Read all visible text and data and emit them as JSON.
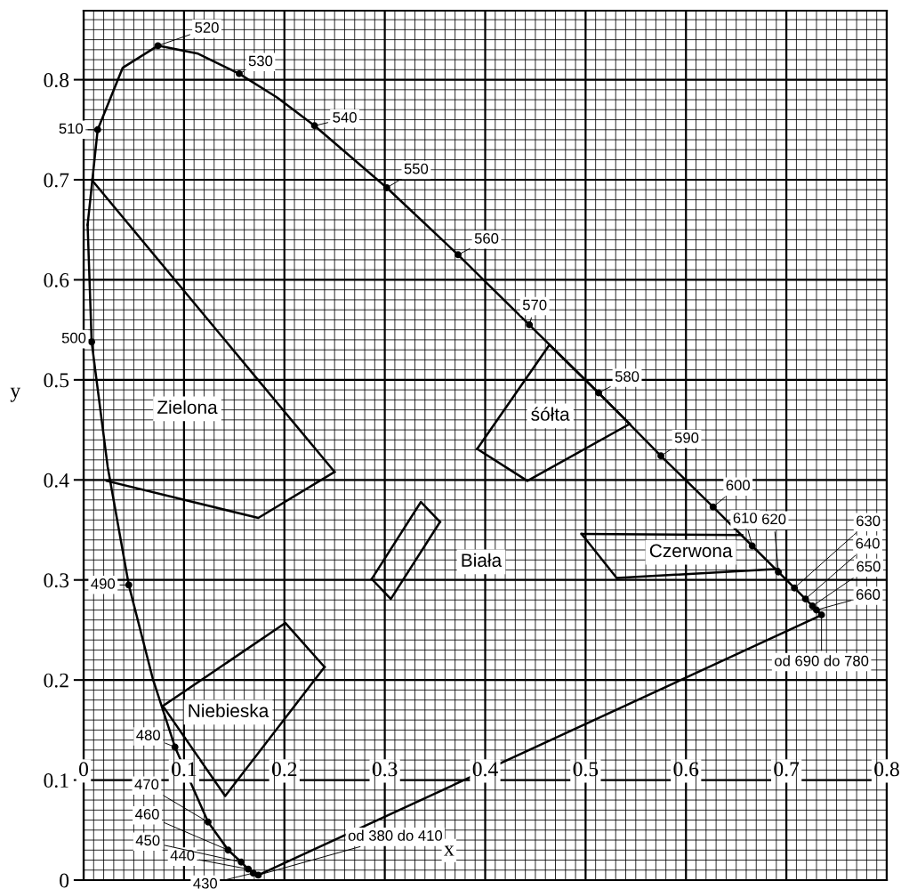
{
  "chart_data": {
    "type": "line",
    "xlabel": "x",
    "ylabel": "y",
    "xlim": [
      0,
      0.8
    ],
    "ylim": [
      0,
      0.869
    ],
    "xticks": [
      0,
      0.1,
      0.2,
      0.3,
      0.4,
      0.5,
      0.6,
      0.7,
      0.8
    ],
    "yticks": [
      0,
      0.1,
      0.2,
      0.3,
      0.4,
      0.5,
      0.6,
      0.7,
      0.8
    ],
    "grid": true,
    "series": [
      {
        "color": "#000000",
        "marker": "none",
        "x": [
          0.174,
          0.169,
          0.164,
          0.157,
          0.144,
          0.124,
          0.091,
          0.069,
          0.045,
          0.024,
          0.008,
          0.004
        ],
        "values": [
          0.005,
          0.007,
          0.011,
          0.018,
          0.03,
          0.058,
          0.133,
          0.201,
          0.295,
          0.413,
          0.538,
          0.655
        ]
      },
      {
        "color": "#000000",
        "marker": "none",
        "x": [
          0.004,
          0.014,
          0.039,
          0.074,
          0.114,
          0.155,
          0.193,
          0.23,
          0.302,
          0.373,
          0.444,
          0.513,
          0.575,
          0.627,
          0.666,
          0.692,
          0.708,
          0.719,
          0.726,
          0.73,
          0.735
        ],
        "values": [
          0.655,
          0.75,
          0.812,
          0.834,
          0.826,
          0.806,
          0.782,
          0.754,
          0.692,
          0.625,
          0.555,
          0.487,
          0.424,
          0.373,
          0.334,
          0.308,
          0.292,
          0.281,
          0.274,
          0.27,
          0.265
        ]
      },
      {
        "color": "#000000",
        "marker": "none",
        "x": [
          0.174,
          0.735
        ],
        "values": [
          0.005,
          0.265
        ]
      },
      {
        "type": "scatter",
        "color": "#000000",
        "marker": "circle",
        "x": [
          0.174,
          0.169,
          0.164,
          0.157,
          0.144,
          0.124,
          0.091,
          0.045,
          0.008,
          0.014,
          0.074,
          0.155,
          0.23,
          0.302,
          0.373,
          0.444,
          0.513,
          0.575,
          0.627,
          0.666,
          0.692,
          0.708,
          0.719,
          0.726,
          0.73,
          0.735
        ],
        "values": [
          0.005,
          0.007,
          0.011,
          0.018,
          0.03,
          0.058,
          0.133,
          0.295,
          0.538,
          0.75,
          0.834,
          0.806,
          0.754,
          0.692,
          0.625,
          0.555,
          0.487,
          0.424,
          0.373,
          0.334,
          0.308,
          0.292,
          0.281,
          0.274,
          0.27,
          0.265
        ]
      },
      {
        "color": "#000000",
        "marker": "none",
        "x": [
          0.008,
          0.25
        ],
        "values": [
          0.7,
          0.408
        ]
      },
      {
        "color": "#000000",
        "marker": "none",
        "x": [
          0.023,
          0.174,
          0.25
        ],
        "values": [
          0.399,
          0.362,
          0.408
        ]
      },
      {
        "color": "#000000",
        "marker": "none",
        "x": [
          0.392,
          0.464,
          0.544
        ],
        "values": [
          0.431,
          0.535,
          0.456
        ]
      },
      {
        "color": "#000000",
        "marker": "none",
        "x": [
          0.392,
          0.442,
          0.544
        ],
        "values": [
          0.431,
          0.399,
          0.456
        ]
      },
      {
        "color": "#000000",
        "marker": "none",
        "x": [
          0.287,
          0.336,
          0.355
        ],
        "values": [
          0.301,
          0.378,
          0.358
        ]
      },
      {
        "color": "#000000",
        "marker": "none",
        "x": [
          0.287,
          0.306,
          0.355
        ],
        "values": [
          0.301,
          0.281,
          0.358
        ]
      },
      {
        "color": "#000000",
        "marker": "none",
        "x": [
          0.496,
          0.656
        ],
        "values": [
          0.346,
          0.345
        ]
      },
      {
        "color": "#000000",
        "marker": "none",
        "x": [
          0.496,
          0.531,
          0.692
        ],
        "values": [
          0.346,
          0.302,
          0.311
        ]
      },
      {
        "color": "#000000",
        "marker": "none",
        "x": [
          0.079,
          0.201,
          0.24
        ],
        "values": [
          0.174,
          0.257,
          0.213
        ]
      },
      {
        "color": "#000000",
        "marker": "none",
        "x": [
          0.079,
          0.141,
          0.24
        ],
        "values": [
          0.174,
          0.084,
          0.213
        ]
      }
    ],
    "annotations": [
      {
        "text": "od 380 do 410",
        "x": 0.174,
        "y": 0.005
      },
      {
        "text": "430",
        "x": 0.169,
        "y": 0.007
      },
      {
        "text": "440",
        "x": 0.164,
        "y": 0.011
      },
      {
        "text": "450",
        "x": 0.157,
        "y": 0.018
      },
      {
        "text": "460",
        "x": 0.144,
        "y": 0.03
      },
      {
        "text": "470",
        "x": 0.124,
        "y": 0.058
      },
      {
        "text": "480",
        "x": 0.091,
        "y": 0.133
      },
      {
        "text": "490",
        "x": 0.045,
        "y": 0.295
      },
      {
        "text": "500",
        "x": 0.008,
        "y": 0.538
      },
      {
        "text": "510",
        "x": 0.014,
        "y": 0.75
      },
      {
        "text": "520",
        "x": 0.074,
        "y": 0.834
      },
      {
        "text": "530",
        "x": 0.155,
        "y": 0.806
      },
      {
        "text": "540",
        "x": 0.23,
        "y": 0.754
      },
      {
        "text": "550",
        "x": 0.302,
        "y": 0.692
      },
      {
        "text": "560",
        "x": 0.373,
        "y": 0.625
      },
      {
        "text": "570",
        "x": 0.444,
        "y": 0.555
      },
      {
        "text": "580",
        "x": 0.513,
        "y": 0.487
      },
      {
        "text": "590",
        "x": 0.575,
        "y": 0.424
      },
      {
        "text": "600",
        "x": 0.627,
        "y": 0.373
      },
      {
        "text": "610",
        "x": 0.666,
        "y": 0.334
      },
      {
        "text": "620",
        "x": 0.692,
        "y": 0.308
      },
      {
        "text": "630",
        "x": 0.708,
        "y": 0.292
      },
      {
        "text": "640",
        "x": 0.719,
        "y": 0.281
      },
      {
        "text": "650",
        "x": 0.726,
        "y": 0.274
      },
      {
        "text": "660",
        "x": 0.73,
        "y": 0.27
      },
      {
        "text": "od 690 do 780",
        "x": 0.735,
        "y": 0.265
      },
      "Zielona",
      "śółta",
      "Biała",
      "Czerwona",
      "Niebieska"
    ]
  }
}
